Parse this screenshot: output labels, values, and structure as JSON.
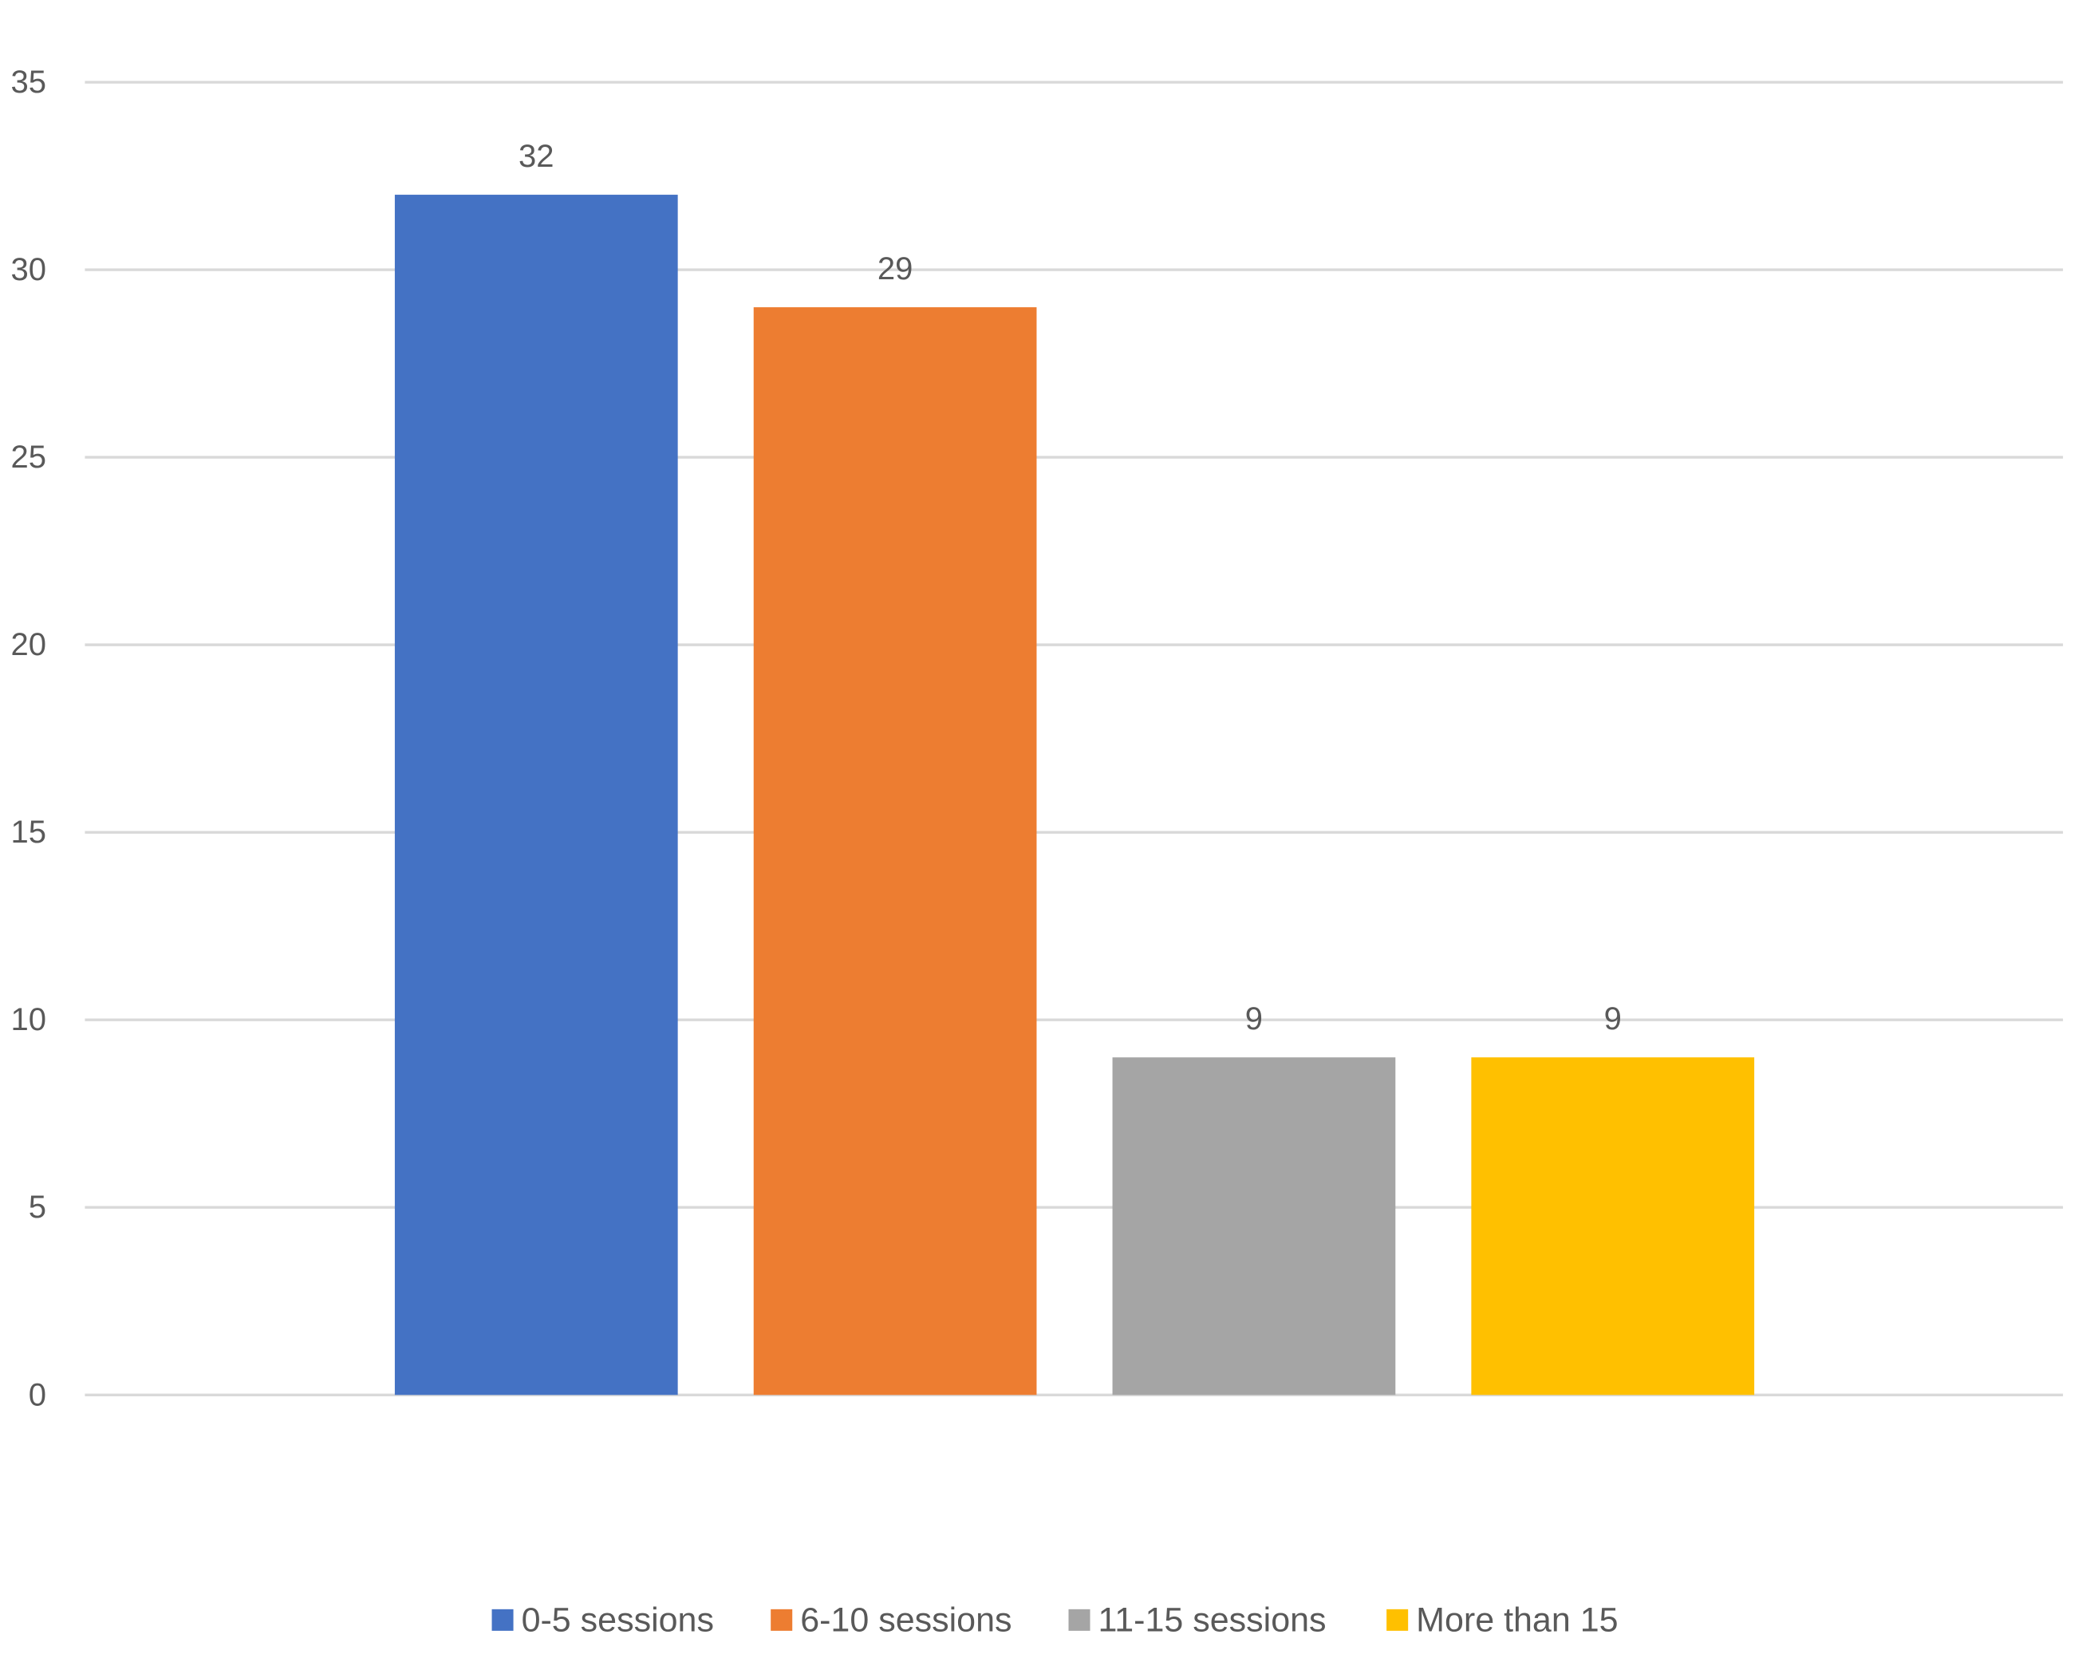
{
  "chart_data": {
    "type": "bar",
    "title": "",
    "xlabel": "",
    "ylabel": "",
    "ylim": [
      0,
      35
    ],
    "y_ticks": [
      0,
      5,
      10,
      15,
      20,
      25,
      30,
      35
    ],
    "grid": true,
    "legend_position": "bottom",
    "series": [
      {
        "name": "0-5 sessions",
        "value": 32,
        "color": "#4472C4"
      },
      {
        "name": "6-10 sessions",
        "value": 29,
        "color": "#ED7D31"
      },
      {
        "name": "11-15 sessions",
        "value": 9,
        "color": "#A5A5A5"
      },
      {
        "name": "More than 15",
        "value": 9,
        "color": "#FFC000"
      }
    ]
  }
}
